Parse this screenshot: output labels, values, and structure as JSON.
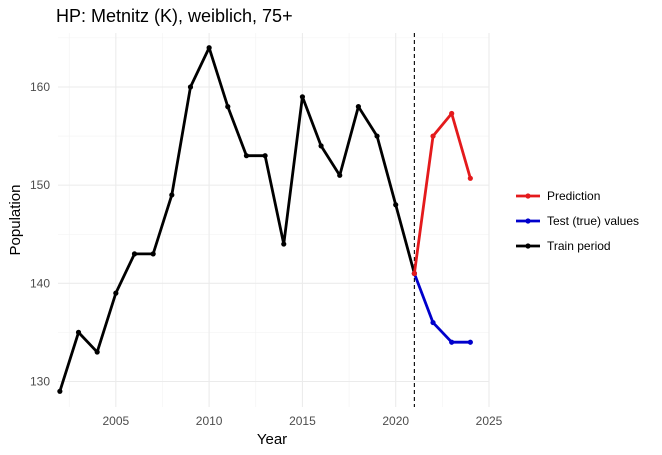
{
  "chart_data": {
    "type": "line",
    "title": "HP: Metnitz (K), weiblich, 75+",
    "xlabel": "Year",
    "ylabel": "Population",
    "xlim": [
      2001.9,
      2025
    ],
    "ylim": [
      127.4,
      165.5
    ],
    "x_ticks": [
      2005,
      2010,
      2015,
      2020,
      2025
    ],
    "y_ticks": [
      130,
      140,
      150,
      160
    ],
    "grid": true,
    "legend_position": "right",
    "vline": {
      "x": 2021,
      "style": "dashed"
    },
    "series": [
      {
        "name": "Prediction",
        "color": "#e41a1c",
        "x": [
          2021,
          2022,
          2023,
          2024
        ],
        "y": [
          141,
          155,
          157.3,
          150.7
        ]
      },
      {
        "name": "Test (true) values",
        "color": "#0000cc",
        "x": [
          2021,
          2022,
          2023,
          2024
        ],
        "y": [
          141,
          136,
          134,
          134
        ]
      },
      {
        "name": "Train period",
        "color": "#000000",
        "x": [
          2002,
          2003,
          2004,
          2005,
          2006,
          2007,
          2008,
          2009,
          2010,
          2011,
          2012,
          2013,
          2014,
          2015,
          2016,
          2017,
          2018,
          2019,
          2020,
          2021
        ],
        "y": [
          129,
          135,
          133,
          139,
          143,
          143,
          149,
          160,
          164,
          158,
          153,
          153,
          144,
          159,
          154,
          151,
          158,
          155,
          148,
          141
        ]
      }
    ]
  }
}
